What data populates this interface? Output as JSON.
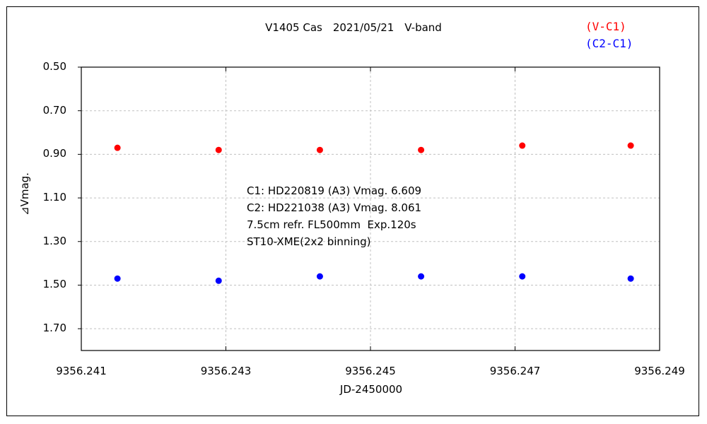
{
  "chart_data": {
    "type": "scatter",
    "title": "V1405 Cas　2021/05/21　V-band",
    "xlabel": "JD-2450000",
    "ylabel": "⊿Vmag.",
    "xlim": [
      9356.241,
      9356.249
    ],
    "ylim": [
      0.5,
      1.8
    ],
    "y_inverted": true,
    "grid": true,
    "x_ticks": [
      "9356.241",
      "9356.243",
      "9356.245",
      "9356.247",
      "9356.249"
    ],
    "y_ticks": [
      "0.50",
      "0.70",
      "0.90",
      "1.10",
      "1.30",
      "1.50",
      "1.70"
    ],
    "legend_position": "top-right",
    "series": [
      {
        "name": "(V-C1)",
        "color": "#ff0000",
        "x": [
          9356.2415,
          9356.2429,
          9356.2443,
          9356.2457,
          9356.2471,
          9356.2486
        ],
        "y": [
          0.87,
          0.88,
          0.88,
          0.88,
          0.86,
          0.86
        ]
      },
      {
        "name": "(C2-C1)",
        "color": "#0000ff",
        "x": [
          9356.2415,
          9356.2429,
          9356.2443,
          9356.2457,
          9356.2471,
          9356.2486
        ],
        "y": [
          1.47,
          1.48,
          1.46,
          1.46,
          1.46,
          1.47
        ]
      }
    ],
    "annotations": [
      "C1: HD220819 (A3) Vmag. 6.609",
      "C2: HD221038 (A3) Vmag. 8.061",
      "7.5cm refr. FL500mm  Exp.120s",
      "ST10-XME(2x2 binning)"
    ]
  }
}
